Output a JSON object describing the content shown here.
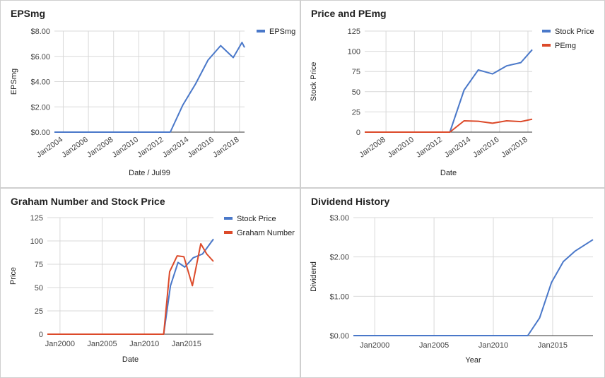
{
  "colors": {
    "blue": "#4a78c9",
    "red": "#dc4a2a",
    "grid": "#d9d9d9",
    "axis": "#333333"
  },
  "chart_data": [
    {
      "type": "line",
      "title": "EPSmg",
      "xlabel": "Date / Jul99",
      "ylabel": "EPSmg",
      "xlim": [
        2003.3,
        2018.4
      ],
      "ylim": [
        0,
        8
      ],
      "ytick_values": [
        0,
        2,
        4,
        6,
        8
      ],
      "ytick_labels": [
        "$0.00",
        "$2.00",
        "$4.00",
        "$6.00",
        "$8.00"
      ],
      "xtick_values": [
        2004,
        2006,
        2008,
        2010,
        2012,
        2014,
        2016,
        2018
      ],
      "xtick_labels": [
        "Jan2004",
        "Jan2006",
        "Jan2008",
        "Jan2010",
        "Jan2012",
        "Jan2014",
        "Jan2016",
        "Jan2018"
      ],
      "xtick_rotate": true,
      "legend": "right",
      "series": [
        {
          "name": "EPSmg",
          "color": "#4a78c9",
          "x": [
            2003.3,
            2012.5,
            2013.5,
            2014.5,
            2015.5,
            2016.5,
            2017.5,
            2018.2,
            2018.4
          ],
          "y": [
            0,
            0,
            2.15,
            3.8,
            5.7,
            6.85,
            5.9,
            7.1,
            6.7
          ]
        }
      ]
    },
    {
      "type": "line",
      "title": "Price and PEmg",
      "xlabel": "Date",
      "ylabel": "Stock Price",
      "xlim": [
        2006.5,
        2018.3
      ],
      "ylim": [
        0,
        125
      ],
      "ytick_values": [
        0,
        25,
        50,
        75,
        100,
        125
      ],
      "ytick_labels": [
        "0",
        "25",
        "50",
        "75",
        "100",
        "125"
      ],
      "xtick_values": [
        2008,
        2010,
        2012,
        2014,
        2016,
        2018
      ],
      "xtick_labels": [
        "Jan2008",
        "Jan2010",
        "Jan2012",
        "Jan2014",
        "Jan2016",
        "Jan2018"
      ],
      "xtick_rotate": true,
      "legend": "right",
      "series": [
        {
          "name": "Stock Price",
          "color": "#4a78c9",
          "x": [
            2006.5,
            2012.5,
            2013.5,
            2014.5,
            2015.5,
            2016.5,
            2017.5,
            2018.3
          ],
          "y": [
            0,
            0,
            52,
            77,
            72,
            82,
            86,
            102
          ]
        },
        {
          "name": "PEmg",
          "color": "#dc4a2a",
          "x": [
            2006.5,
            2012.5,
            2013.5,
            2014.5,
            2015.5,
            2016.5,
            2017.5,
            2018.3
          ],
          "y": [
            0,
            0,
            14,
            13.5,
            11,
            14,
            13,
            16
          ]
        }
      ]
    },
    {
      "type": "line",
      "title": "Graham Number and Stock Price",
      "xlabel": "Date",
      "ylabel": "Price",
      "xlim": [
        1998.5,
        2018.2
      ],
      "ylim": [
        0,
        125
      ],
      "ytick_values": [
        0,
        25,
        50,
        75,
        100,
        125
      ],
      "ytick_labels": [
        "0",
        "25",
        "50",
        "75",
        "100",
        "125"
      ],
      "xtick_values": [
        2000,
        2005,
        2010,
        2015
      ],
      "xtick_labels": [
        "Jan2000",
        "Jan2005",
        "Jan2010",
        "Jan2015"
      ],
      "xtick_rotate": false,
      "legend": "right",
      "series": [
        {
          "name": "Stock Price",
          "color": "#4a78c9",
          "x": [
            1998.5,
            2012.3,
            2013.1,
            2014.0,
            2014.8,
            2015.8,
            2016.9,
            2018.2
          ],
          "y": [
            0,
            0,
            52,
            77,
            72,
            82,
            86,
            102
          ]
        },
        {
          "name": "Graham Number",
          "color": "#dc4a2a",
          "x": [
            1998.5,
            2012.3,
            2013.0,
            2013.9,
            2014.7,
            2015.7,
            2016.7,
            2017.4,
            2018.2
          ],
          "y": [
            0,
            0,
            67,
            84,
            83,
            52,
            97,
            86,
            78
          ]
        }
      ]
    },
    {
      "type": "line",
      "title": "Dividend History",
      "xlabel": "Year",
      "ylabel": "Dividend",
      "xlim": [
        1998.2,
        2018.4
      ],
      "ylim": [
        0,
        3
      ],
      "ytick_values": [
        0,
        1,
        2,
        3
      ],
      "ytick_labels": [
        "$0.00",
        "$1.00",
        "$2.00",
        "$3.00"
      ],
      "xtick_values": [
        2000,
        2005,
        2010,
        2015
      ],
      "xtick_labels": [
        "Jan2000",
        "Jan2005",
        "Jan2010",
        "Jan2015"
      ],
      "xtick_rotate": false,
      "legend": "none",
      "series": [
        {
          "name": "",
          "color": "#4a78c9",
          "x": [
            1998.2,
            2012.9,
            2013.9,
            2014.9,
            2015.9,
            2016.9,
            2018.4
          ],
          "y": [
            0,
            0,
            0.45,
            1.35,
            1.88,
            2.15,
            2.44
          ]
        }
      ]
    }
  ]
}
